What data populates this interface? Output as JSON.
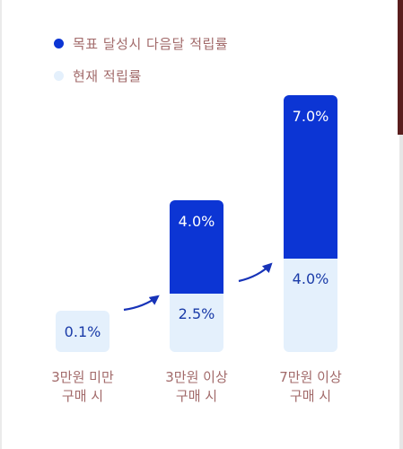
{
  "colors": {
    "target": "#0c35d4",
    "current": "#e4f0fc",
    "current_text": "#1a3ba8",
    "target_text": "#ffffff",
    "category_text": "#a26a6a",
    "arrow": "#1733b8"
  },
  "legend": [
    {
      "label": "목표 달성시 다음달 적립률",
      "color": "#0c35d4"
    },
    {
      "label": "현재 적립률",
      "color": "#e4f0fc"
    }
  ],
  "chart_data": {
    "type": "bar",
    "stacked": true,
    "categories": [
      [
        "3만원 미만",
        "구매 시"
      ],
      [
        "3만원 이상",
        "구매 시"
      ],
      [
        "7만원 이상",
        "구매 시"
      ]
    ],
    "series": [
      {
        "name": "현재 적립률",
        "values": [
          0.1,
          2.5,
          4.0
        ],
        "labels": [
          "0.1%",
          "2.5%",
          "4.0%"
        ]
      },
      {
        "name": "목표 달성시 다음달 적립률",
        "values": [
          0,
          4.0,
          7.0
        ],
        "labels": [
          "",
          "4.0%",
          "7.0%"
        ]
      }
    ],
    "title": "",
    "xlabel": "",
    "ylabel": "",
    "grid": false,
    "legend_position": "top-left"
  }
}
